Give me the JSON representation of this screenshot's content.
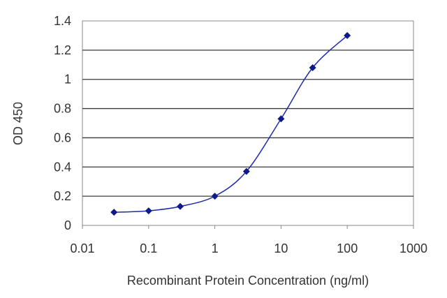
{
  "chart_data": {
    "type": "line",
    "title": "",
    "xlabel": "Recombinant Protein Concentration (ng/ml)",
    "ylabel": "OD 450",
    "x_scale": "log",
    "xlim": [
      0.01,
      1000
    ],
    "ylim": [
      0,
      1.4
    ],
    "x_ticks": [
      "0.01",
      "0.1",
      "1",
      "10",
      "100",
      "1000"
    ],
    "y_ticks": [
      "0",
      "0.2",
      "0.4",
      "0.6",
      "0.8",
      "1",
      "1.2",
      "1.4"
    ],
    "grid": "horizontal",
    "legend": "none",
    "series": [
      {
        "x": [
          0.03,
          0.1,
          0.3,
          1,
          3,
          10,
          30,
          100
        ],
        "y": [
          0.09,
          0.1,
          0.13,
          0.2,
          0.37,
          0.73,
          1.08,
          1.3
        ]
      }
    ],
    "colors": {
      "plot_background": "#ffffff",
      "grid": "#3a3a3a",
      "frame": "#8a8a8a",
      "series": "#1f2aa8",
      "marker": "#0d1a8a"
    }
  }
}
